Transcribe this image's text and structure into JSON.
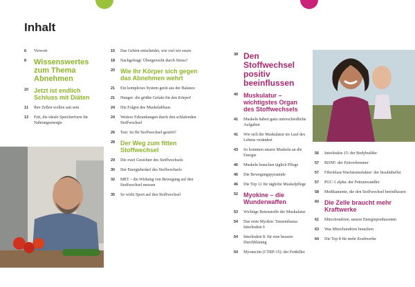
{
  "title": "Inhalt",
  "columns": [
    [
      {
        "page": 6,
        "text": "Vorwort"
      },
      {
        "page": 8,
        "text": "Wissenswertes zum Thema Abnehmen"
      },
      {
        "page": 10,
        "text": "Jetzt ist endlich Schluss mit Diäten"
      },
      {
        "page": 11,
        "text": "Ihre Zellen wollen satt sein"
      },
      {
        "page": 13,
        "text": "Fett, die ideale Speicherform für Nahrungsenergie"
      }
    ],
    [
      {
        "page": 15,
        "text": "Das Gehirn entscheidet, wie viel wir essen"
      },
      {
        "page": 18,
        "text": "Nachgefragt: Übergewicht durch Stress?"
      },
      {
        "page": 20,
        "text": "Wie Ihr Körper sich gegen das Abnehmen wehrt"
      },
      {
        "page": 21,
        "text": "Ein komplexes System gerät aus der Balance"
      },
      {
        "page": 21,
        "text": "Hunger: die größte Gefahr für den Körper!"
      },
      {
        "page": 24,
        "text": "Die Folgen des Muskelabbaus"
      },
      {
        "page": 24,
        "text": "Weitere Erkrankungen durch den schlafenden Stoffwechsel"
      },
      {
        "page": 26,
        "text": "Test: Ist Ihr Stoffwechsel gestört?"
      },
      {
        "page": 28,
        "text": "Der Weg zum fitten Stoffwechsel"
      },
      {
        "page": 29,
        "text": "Die zwei Gesichter des Stoffwechsels"
      },
      {
        "page": 30,
        "text": "Der Energiebedarf des Stoffwechsels"
      },
      {
        "page": 32,
        "text": "MET – die Wirkung von Bewegung auf den Stoffwechsel messen"
      },
      {
        "page": 35,
        "text": "So wirkt Sport auf den Stoffwechsel"
      }
    ],
    [
      {
        "page": 38,
        "text": "Den Stoffwechsel positiv beeinflussen"
      },
      {
        "page": 40,
        "text": "Muskulatur – wichtigstes Organ des Stoffwechsels"
      },
      {
        "page": 41,
        "text": "Muskeln haben ganz unterschiedliche Aufgaben"
      },
      {
        "page": 41,
        "text": "Wie sich die Muskulatur im Lauf des Lebens verändert"
      },
      {
        "page": 43,
        "text": "So kommen unsere Muskeln an die Energie"
      },
      {
        "page": 46,
        "text": "Muskeln brauchen täglich Pflege"
      },
      {
        "page": 46,
        "text": "Die Bewegungspyramide"
      },
      {
        "page": 46,
        "text": "Die Top 12 für tägliche Muskelpflege"
      },
      {
        "page": 52,
        "text": "Myokine – die Wunderwaffen"
      },
      {
        "page": 53,
        "text": "Wichtige Botenstoffe der Muskulatur"
      },
      {
        "page": 54,
        "text": "Das erste Myokin: Tausendsassa Interleukin 6"
      },
      {
        "page": 54,
        "text": "Interleukin 8: für eine bessere Durchblutung"
      },
      {
        "page": 54,
        "text": "Myonectin (CTRP-15): der Fettkiller"
      }
    ],
    [
      {
        "page": 56,
        "text": "Interleukin 15: der Bodybuilder"
      },
      {
        "page": 57,
        "text": "BDNF: der Fettverbrenner"
      },
      {
        "page": 57,
        "text": "Fibroblast-Wachstumsfaktor: der Insulinhelfer"
      },
      {
        "page": 57,
        "text": "PGC-1 alpha: der Fettumwandler"
      },
      {
        "page": 58,
        "text": "Medikamente, die den Stoffwechsel beeinflussen"
      },
      {
        "page": 60,
        "text": "Die Zelle braucht mehr Kraftwerke"
      },
      {
        "page": 61,
        "text": "Mitochondrien, unsere Energieproduzenten"
      },
      {
        "page": 63,
        "text": "Was Mitochondrien brauchen"
      },
      {
        "page": 64,
        "text": "Die Top 8 für mehr Kraftwerke"
      }
    ]
  ]
}
